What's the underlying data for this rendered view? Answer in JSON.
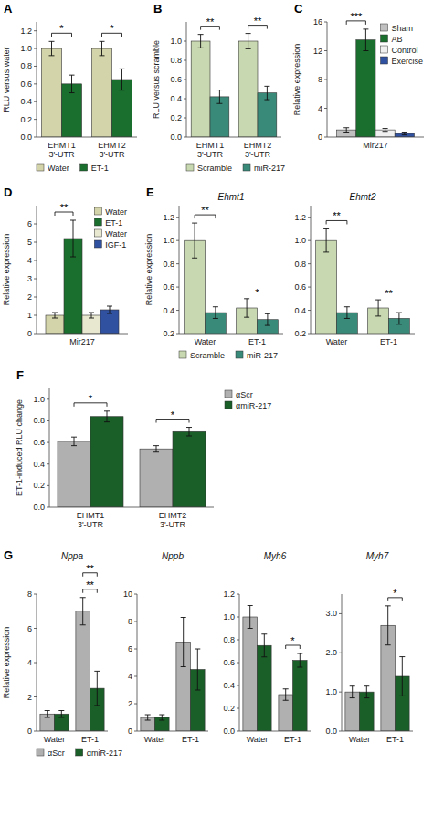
{
  "chart_data": [
    {
      "type": "bar",
      "categories": [
        "EHMT1\n3'-UTR",
        "EHMT2\n3'-UTR"
      ],
      "series": [
        {
          "name": "Water",
          "color": "#d4d4aa",
          "values": [
            1.0,
            1.0
          ],
          "errors": [
            0.08,
            0.08
          ]
        },
        {
          "name": "ET-1",
          "color": "#1a6e2e",
          "values": [
            0.6,
            0.65
          ],
          "errors": [
            0.1,
            0.12
          ]
        }
      ],
      "ylabel": "RLU versus water",
      "ylim": [
        0,
        1.3
      ],
      "yticks": [
        {
          "value": 0,
          "label": "0.0"
        },
        0.2,
        0.4,
        0.6,
        0.8,
        {
          "value": 1.0,
          "label": "1.0"
        },
        1.2
      ],
      "legend": "bottom",
      "annotations": [
        {
          "text": "A"
        },
        {
          "text": "*",
          "x": "EHMT1\n3'-UTR",
          "bracket": true
        },
        {
          "text": "*",
          "x": "EHMT2\n3'-UTR",
          "bracket": true
        }
      ]
    },
    {
      "type": "bar",
      "categories": [
        "EHMT1\n3'-UTR",
        "EHMT2\n3'-UTR"
      ],
      "series": [
        {
          "name": "Scramble",
          "color": "#c8d8b0",
          "values": [
            1.0,
            1.0
          ],
          "errors": [
            0.07,
            0.08
          ]
        },
        {
          "name": "miR-217",
          "color": "#3a8a7a",
          "values": [
            0.42,
            0.46
          ],
          "errors": [
            0.07,
            0.07
          ]
        }
      ],
      "ylabel": "RLU versus scramble",
      "ylim": [
        0,
        1.2
      ],
      "yticks": [
        {
          "value": 0,
          "label": "0.0"
        },
        0.2,
        0.4,
        0.6,
        0.8,
        {
          "value": 1.0,
          "label": "1.0"
        }
      ],
      "legend": "bottom",
      "annotations": [
        {
          "text": "B"
        },
        {
          "text": "**",
          "x": "EHMT1\n3'-UTR",
          "bracket": true
        },
        {
          "text": "**",
          "x": "EHMT2\n3'-UTR",
          "bracket": true
        }
      ]
    },
    {
      "type": "bar",
      "categories": [
        "Mir217"
      ],
      "series": [
        {
          "name": "Sham",
          "color": "#c0c0c0",
          "values": [
            1.0
          ],
          "errors": [
            0.3
          ]
        },
        {
          "name": "AB",
          "color": "#1a6e2e",
          "values": [
            13.5
          ],
          "errors": [
            1.5
          ]
        },
        {
          "name": "Control",
          "color": "#f0f0f0",
          "values": [
            1.0
          ],
          "errors": [
            0.2
          ]
        },
        {
          "name": "Exercise",
          "color": "#3050a0",
          "values": [
            0.5
          ],
          "errors": [
            0.2
          ]
        }
      ],
      "ylabel": "Relative expression",
      "ylim": [
        0,
        16
      ],
      "yticks": [
        0,
        4,
        8,
        12,
        16
      ],
      "legend": "upper right",
      "annotations": [
        {
          "text": "C"
        },
        {
          "text": "***",
          "x": "Mir217",
          "bracket": true
        }
      ]
    },
    {
      "type": "bar",
      "categories": [
        "Mir217"
      ],
      "series": [
        {
          "name": "Water",
          "color": "#d4d4aa",
          "values": [
            1.0
          ],
          "errors": [
            0.15
          ]
        },
        {
          "name": "ET-1",
          "color": "#1a6e2e",
          "values": [
            5.2
          ],
          "errors": [
            1.0
          ]
        },
        {
          "name": "Water",
          "color": "#e8e8d0",
          "values": [
            1.0
          ],
          "errors": [
            0.15
          ]
        },
        {
          "name": "IGF-1",
          "color": "#3050a0",
          "values": [
            1.3
          ],
          "errors": [
            0.2
          ]
        }
      ],
      "ylabel": "Relative expression",
      "ylim": [
        0,
        7
      ],
      "yticks": [
        0,
        1,
        2,
        3,
        4,
        5,
        6
      ],
      "legend": "upper right",
      "annotations": [
        {
          "text": "D"
        },
        {
          "text": "**",
          "x": "Mir217",
          "bracket": true
        }
      ]
    },
    {
      "type": "bar",
      "title": "Ehmt1",
      "categories": [
        "Water",
        "ET-1"
      ],
      "series": [
        {
          "name": "Scramble",
          "color": "#c8d8b0",
          "values": [
            1.0,
            0.42
          ],
          "errors": [
            0.15,
            0.08
          ]
        },
        {
          "name": "miR-217",
          "color": "#3a8a7a",
          "values": [
            0.38,
            0.32
          ],
          "errors": [
            0.05,
            0.05
          ]
        }
      ],
      "ylabel": "Relative expression",
      "ylim": [
        0.2,
        1.3
      ],
      "yticks": [
        0.2,
        0.4,
        0.6,
        0.8,
        {
          "value": 1.0,
          "label": "1.0"
        },
        1.2
      ],
      "legend": "bottom",
      "annotations": [
        {
          "text": "E"
        },
        {
          "text": "**",
          "x": "Water",
          "bracket": true
        },
        {
          "text": "*",
          "x": "ET-1",
          "bracket": false
        }
      ]
    },
    {
      "type": "bar",
      "title": "Ehmt2",
      "categories": [
        "Water",
        "ET-1"
      ],
      "series": [
        {
          "color": "#c8d8b0",
          "values": [
            1.0,
            0.42
          ],
          "errors": [
            0.1,
            0.07
          ]
        },
        {
          "color": "#3a8a7a",
          "values": [
            0.38,
            0.33
          ],
          "errors": [
            0.05,
            0.05
          ]
        }
      ],
      "ylim": [
        0.2,
        1.3
      ],
      "yticks": [
        0.2,
        0.4,
        0.6,
        0.8,
        {
          "value": 1.0,
          "label": "1.0"
        },
        1.2
      ],
      "annotations": [
        {
          "text": "**",
          "x": "Water",
          "bracket": true
        },
        {
          "text": "**",
          "x": "ET-1",
          "bracket": false
        }
      ]
    },
    {
      "type": "bar",
      "categories": [
        "EHMT1\n3'-UTR",
        "EHMT2\n3'-UTR"
      ],
      "series": [
        {
          "name": "αScr",
          "color": "#b0b0b0",
          "values": [
            0.61,
            0.54
          ],
          "errors": [
            0.04,
            0.03
          ]
        },
        {
          "name": "αmiR-217",
          "color": "#1a5e28",
          "values": [
            0.84,
            0.7
          ],
          "errors": [
            0.05,
            0.04
          ]
        }
      ],
      "ylabel": "ET-1-induced RLU change",
      "ylim": [
        0.0,
        1.1
      ],
      "yticks": [
        {
          "value": 0.0,
          "label": "0.0"
        },
        0.2,
        0.4,
        0.6,
        0.8,
        {
          "value": 1.0,
          "label": "1.0"
        }
      ],
      "legend": "right",
      "annotations": [
        {
          "text": "F"
        },
        {
          "text": "*",
          "x": "EHMT1\n3'-UTR",
          "bracket": true
        },
        {
          "text": "*",
          "x": "EHMT2\n3'-UTR",
          "bracket": true
        }
      ]
    },
    {
      "type": "bar",
      "title": "Nppa",
      "categories": [
        "Water",
        "ET-1"
      ],
      "series": [
        {
          "name": "αScr",
          "color": "#b0b0b0",
          "values": [
            1.0,
            7.0
          ],
          "errors": [
            0.2,
            0.8
          ]
        },
        {
          "name": "αmiR-217",
          "color": "#1a5e28",
          "values": [
            1.0,
            2.5
          ],
          "errors": [
            0.2,
            1.0
          ]
        }
      ],
      "ylabel": "Relative expression",
      "ylim": [
        0,
        8
      ],
      "yticks": [
        0,
        2,
        4,
        6,
        8
      ],
      "legend": "bottom",
      "annotations": [
        {
          "text": "G"
        },
        {
          "text": "**",
          "x": "ET-1",
          "bracket": true
        },
        {
          "text": "**",
          "x": "ET-1",
          "bracket": true
        }
      ]
    },
    {
      "type": "bar",
      "title": "Nppb",
      "categories": [
        "Water",
        "ET-1"
      ],
      "series": [
        {
          "color": "#b0b0b0",
          "values": [
            1.0,
            6.5
          ],
          "errors": [
            0.2,
            1.8
          ]
        },
        {
          "color": "#1a5e28",
          "values": [
            1.0,
            4.5
          ],
          "errors": [
            0.2,
            1.5
          ]
        }
      ],
      "ylim": [
        0,
        10
      ],
      "yticks": [
        0,
        2,
        4,
        6,
        8,
        10
      ]
    },
    {
      "type": "bar",
      "title": "Myh6",
      "categories": [
        "Water",
        "ET-1"
      ],
      "series": [
        {
          "color": "#b0b0b0",
          "values": [
            1.0,
            0.32
          ],
          "errors": [
            0.1,
            0.05
          ]
        },
        {
          "color": "#1a5e28",
          "values": [
            0.75,
            0.62
          ],
          "errors": [
            0.1,
            0.06
          ]
        }
      ],
      "ylim": [
        0,
        1.2
      ],
      "yticks": [
        {
          "value": 0,
          "label": "0.0"
        },
        0.2,
        0.4,
        0.6,
        0.8,
        {
          "value": 1.0,
          "label": "1.0"
        },
        1.2
      ],
      "annotations": [
        {
          "text": "*",
          "x": "ET-1",
          "bracket": true
        }
      ]
    },
    {
      "type": "bar",
      "title": "Myh7",
      "categories": [
        "Water",
        "ET-1"
      ],
      "series": [
        {
          "color": "#b0b0b0",
          "values": [
            1.0,
            2.7
          ],
          "errors": [
            0.15,
            0.5
          ]
        },
        {
          "color": "#1a5e28",
          "values": [
            1.0,
            1.4
          ],
          "errors": [
            0.15,
            0.5
          ]
        }
      ],
      "ylim": [
        0,
        3.5
      ],
      "yticks": [
        {
          "value": 0,
          "label": "0.0"
        },
        {
          "value": 1.0,
          "label": "1.0"
        },
        {
          "value": 2.0,
          "label": "2.0"
        },
        {
          "value": 3.0,
          "label": "3.0"
        }
      ],
      "annotations": [
        {
          "text": "*",
          "x": "ET-1",
          "bracket": true
        }
      ]
    }
  ]
}
